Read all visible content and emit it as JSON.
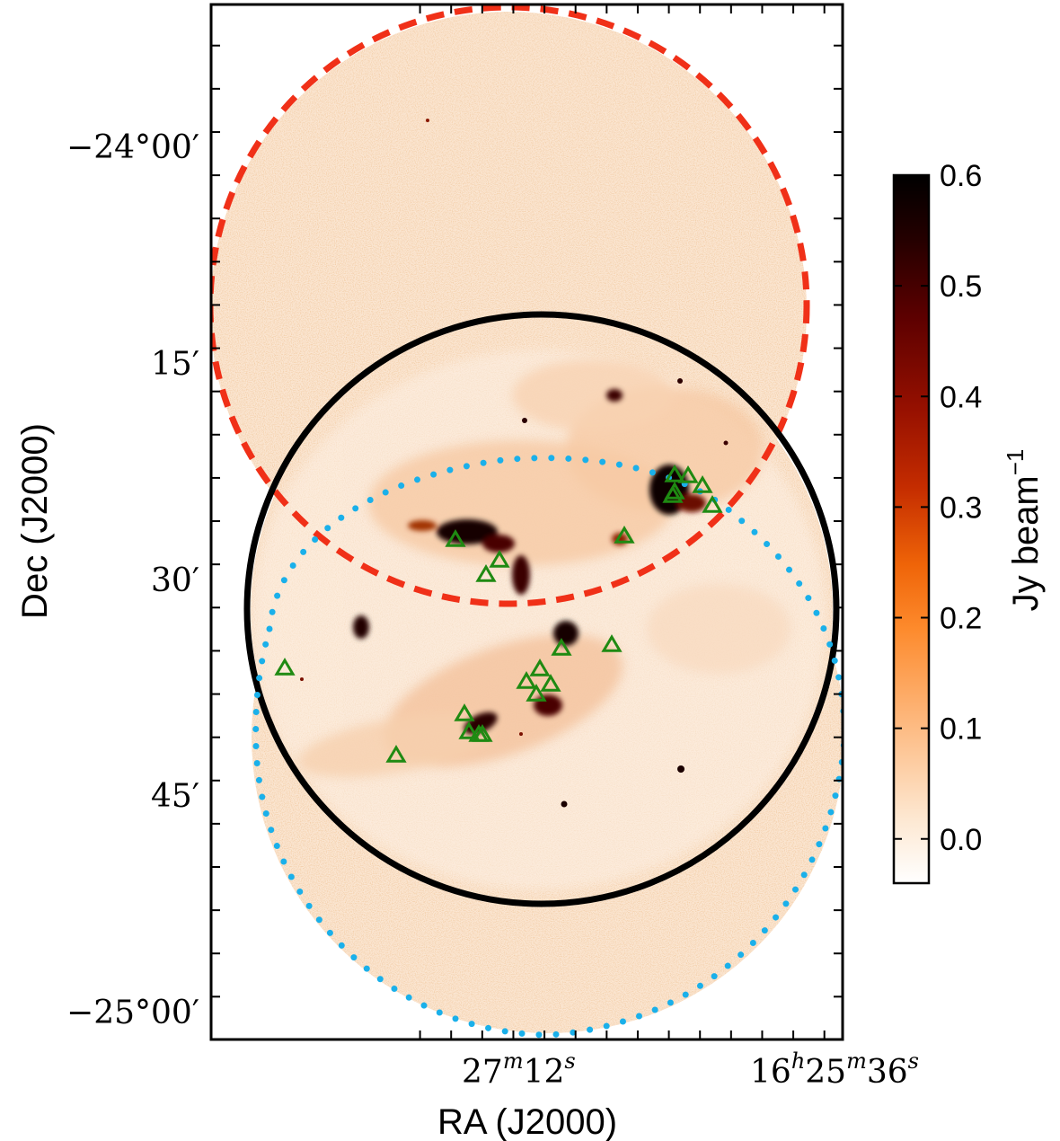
{
  "chart_data": {
    "type": "heatmap",
    "title": "",
    "xlabel": "RA (J2000)",
    "ylabel": "Dec (J2000)",
    "x_ticks": [
      {
        "label": "27",
        "sup_m": "m",
        "num2": "12",
        "sup_s": "s",
        "ra_sec_offset": 0
      },
      {
        "label": "16",
        "sup_h": "h",
        "num2": "25",
        "sup_m": "m",
        "num3": "36",
        "sup_s": "s",
        "ra_sec_offset": -96
      }
    ],
    "y_ticks": [
      {
        "label": "−24°00′",
        "dec_arcmin": -1440
      },
      {
        "label": "15′",
        "dec_arcmin": -1455
      },
      {
        "label": "30′",
        "dec_arcmin": -1470
      },
      {
        "label": "45′",
        "dec_arcmin": -1485
      },
      {
        "label": "−25°00′",
        "dec_arcmin": -1500
      }
    ],
    "ylim_arcmin": [
      -1500.9,
      -1431
    ],
    "colorbar": {
      "label": "Jy beam",
      "label_sup": "−1",
      "range": [
        -0.04,
        0.6
      ],
      "ticks": [
        {
          "label": "0.6",
          "value": 0.6
        },
        {
          "label": "0.5",
          "value": 0.5
        },
        {
          "label": "0.4",
          "value": 0.4
        },
        {
          "label": "0.3",
          "value": 0.3
        },
        {
          "label": "0.2",
          "value": 0.2
        },
        {
          "label": "0.1",
          "value": 0.1
        },
        {
          "label": "0.0",
          "value": 0.0
        }
      ],
      "colormap": [
        "#ffffff",
        "#fde2c4",
        "#fdb072",
        "#fd7a16",
        "#e04c00",
        "#b01800",
        "#7a0200",
        "#3c0000",
        "#000000"
      ]
    },
    "overlays": [
      {
        "shape": "circle",
        "style": "dashed",
        "color": "#f03018"
      },
      {
        "shape": "circle",
        "style": "solid",
        "color": "#000000"
      },
      {
        "shape": "circle",
        "style": "dotted",
        "color": "#1ab0ea"
      }
    ],
    "markers": {
      "shape": "triangle",
      "color": "#1f8a12",
      "count": 26
    }
  }
}
